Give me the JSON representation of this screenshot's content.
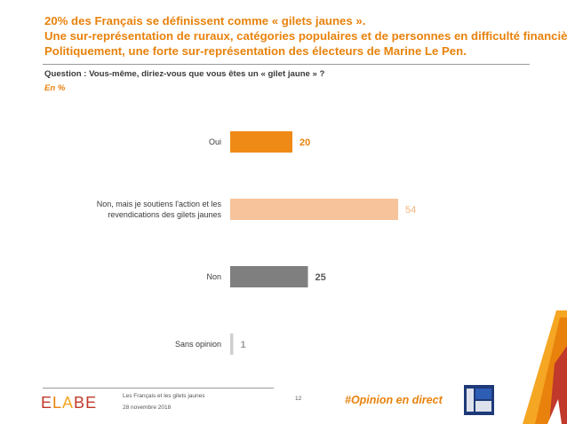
{
  "title_lines": [
    "20% des Français se définissent comme « gilets jaunes ».",
    "Une sur-représentation de ruraux, catégories populaires et de personnes en difficulté financière.",
    "Politiquement, une forte sur-représentation des électeurs de Marine Le Pen."
  ],
  "question": "Question : Vous-même, diriez-vous que vous êtes un « gilet jaune » ?",
  "unit": "En  %",
  "chart_data": {
    "type": "bar",
    "orientation": "horizontal",
    "categories": [
      [
        "Oui"
      ],
      [
        "Non, mais je soutiens l'action et les",
        "revendications des gilets jaunes"
      ],
      [
        "Non"
      ],
      [
        "Sans opinion"
      ]
    ],
    "values": [
      20,
      54,
      25,
      1
    ],
    "colors": [
      "#f08a17",
      "#f7c39a",
      "#7f7f7f",
      "#cfcfcf"
    ],
    "label_colors": [
      "#e8820c",
      "#f5b37b",
      "#595959",
      "#9a9a9a"
    ],
    "label_bold": [
      true,
      false,
      true,
      true
    ],
    "xlim": [
      0,
      60
    ]
  },
  "footer": {
    "logo": [
      "E",
      "L",
      "A",
      "B",
      "E"
    ],
    "survey_name": "Les Français et les gilets jaunes",
    "survey_date": "28 novembre 2018",
    "page_number": "12",
    "hashtag": "#Opinion en direct"
  }
}
